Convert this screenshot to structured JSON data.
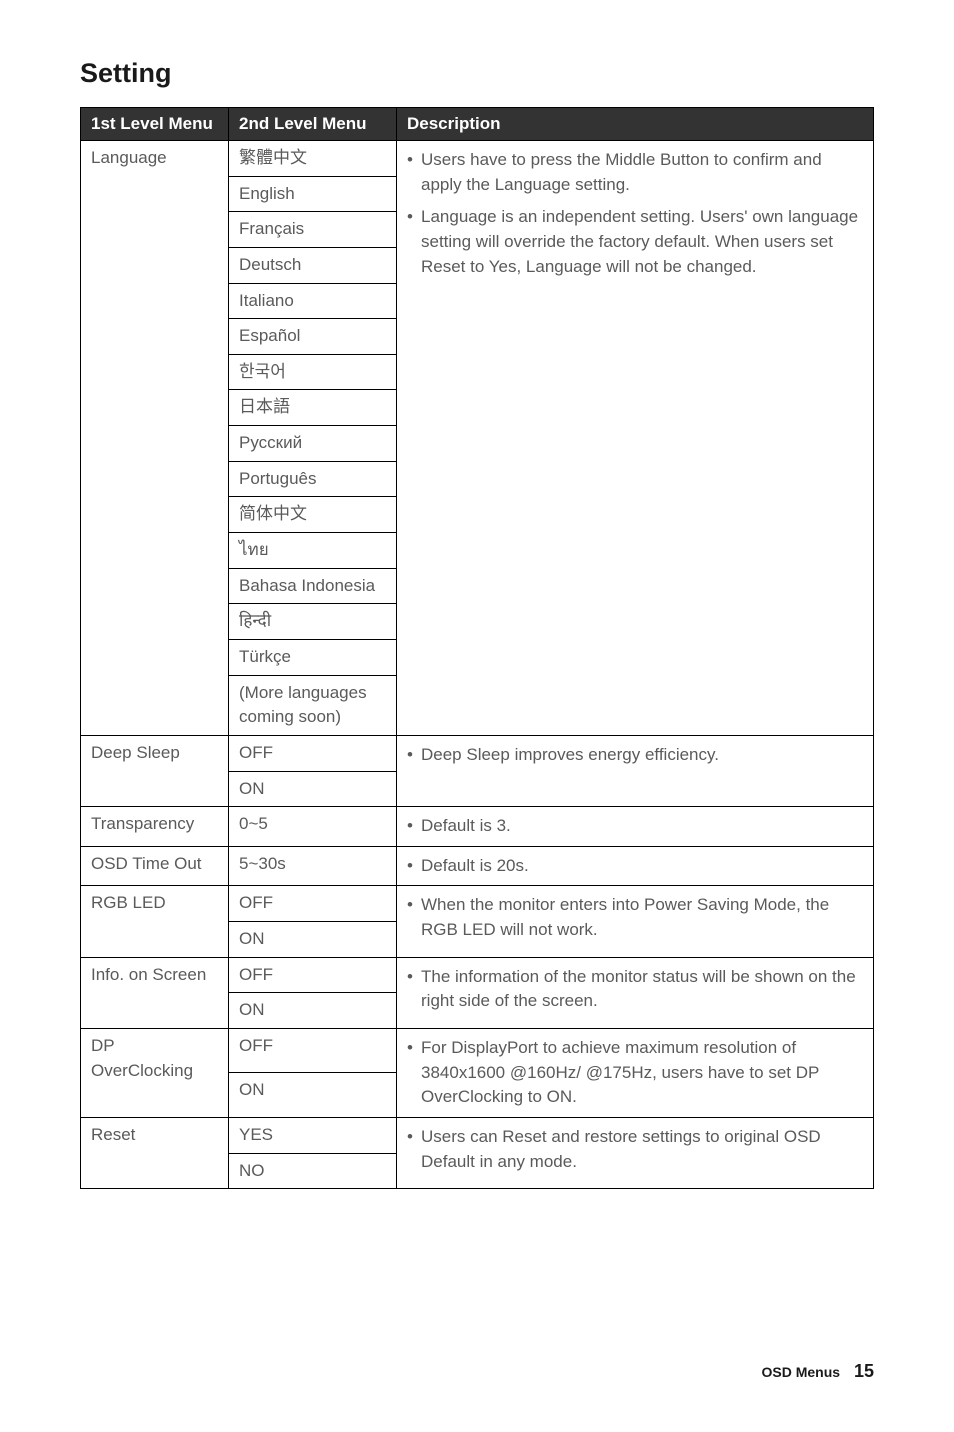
{
  "title": "Setting",
  "headers": {
    "c1": "1st Level Menu",
    "c2": "2nd Level Menu",
    "c3": "Description"
  },
  "language": {
    "label": "Language",
    "items": [
      "繁體中文",
      "English",
      "Français",
      "Deutsch",
      "Italiano",
      "Español",
      "한국어",
      "日本語",
      "Русский",
      "Português",
      "简体中文",
      "ไทย",
      "Bahasa Indonesia",
      "हिन्दी",
      "Türkçe",
      "(More languages coming soon)"
    ],
    "desc1": "Users have to press the Middle Button to confirm and apply the Language setting.",
    "desc2": "Language is an independent setting. Users' own language setting will override the factory default. When users set Reset to Yes, Language will not be changed."
  },
  "deepSleep": {
    "label": "Deep Sleep",
    "opt1": "OFF",
    "opt2": "ON",
    "desc": "Deep Sleep improves energy efficiency."
  },
  "transparency": {
    "label": "Transparency",
    "opt": "0~5",
    "desc": "Default is 3."
  },
  "osdTimeOut": {
    "label": "OSD Time Out",
    "opt": "5~30s",
    "desc": "Default is 20s."
  },
  "rgbLed": {
    "label": "RGB LED",
    "opt1": "OFF",
    "opt2": "ON",
    "desc": "When the monitor enters into Power Saving Mode, the RGB LED will not work."
  },
  "infoOnScreen": {
    "label": "Info. on Screen",
    "opt1": "OFF",
    "opt2": "ON",
    "desc": "The information of the monitor status will be shown on the right side of the screen."
  },
  "dpOverClocking": {
    "label1": "DP",
    "label2": "OverClocking",
    "opt1": "OFF",
    "opt2": "ON",
    "desc": "For DisplayPort to achieve maximum resolution of 3840x1600 @160Hz/ @175Hz, users have to set DP OverClocking to ON."
  },
  "reset": {
    "label": "Reset",
    "opt1": "YES",
    "opt2": "NO",
    "desc": "Users can Reset and restore settings to original OSD Default in any mode."
  },
  "footer": {
    "label": "OSD Menus",
    "page": "15"
  }
}
